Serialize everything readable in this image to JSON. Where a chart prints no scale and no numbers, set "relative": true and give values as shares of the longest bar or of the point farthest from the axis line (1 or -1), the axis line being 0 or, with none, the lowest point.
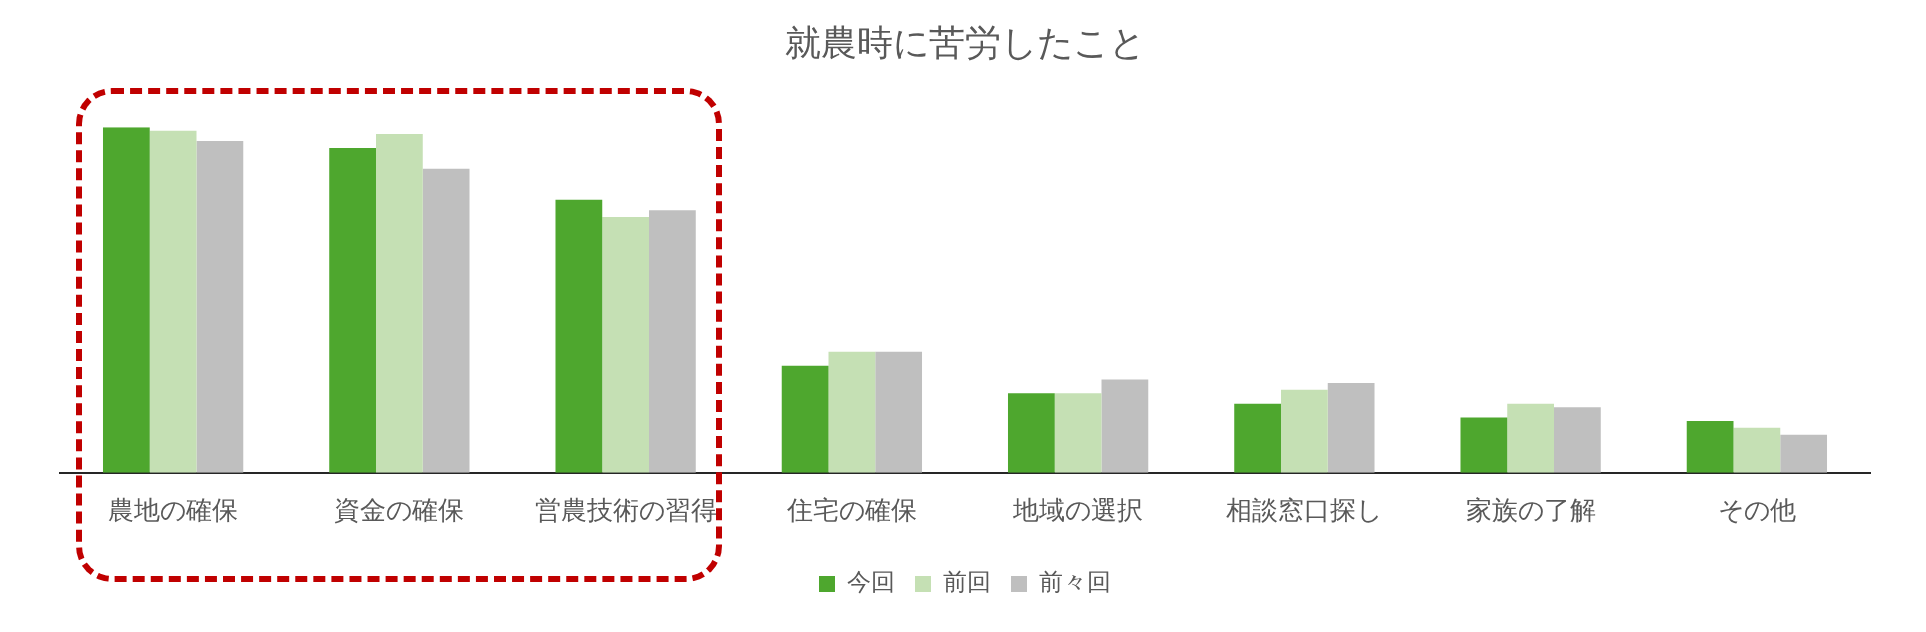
{
  "chart_data": {
    "type": "bar",
    "title": "就農時に苦労したこと",
    "relative": true,
    "legend": "bottom",
    "grid": false,
    "categories": [
      "農地の確保",
      "資金の確保",
      "営農技術の習得",
      "住宅の確保",
      "地域の選択",
      "相談窓口探し",
      "家族の了解",
      "その他"
    ],
    "series": [
      {
        "name": "今回",
        "color": "#4ea72e",
        "values": [
          1.0,
          0.94,
          0.79,
          0.31,
          0.23,
          0.2,
          0.16,
          0.15
        ]
      },
      {
        "name": "前回",
        "color": "#c5e0b4",
        "values": [
          0.99,
          0.98,
          0.74,
          0.35,
          0.23,
          0.24,
          0.2,
          0.13
        ]
      },
      {
        "name": "前々回",
        "color": "#bfbfbf",
        "values": [
          0.96,
          0.88,
          0.76,
          0.35,
          0.27,
          0.26,
          0.19,
          0.11
        ]
      }
    ]
  }
}
